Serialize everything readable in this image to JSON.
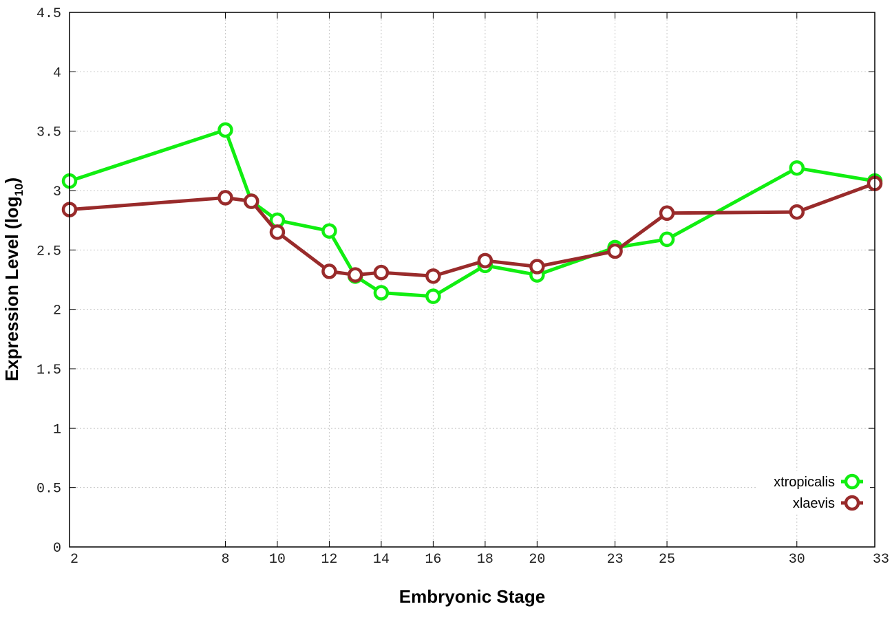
{
  "chart_data": {
    "type": "line",
    "xlabel": "Embryonic Stage",
    "ylabel": "Expression Level (log",
    "ylabel_sub": "10",
    "ylabel_close": ")",
    "x_ticks": [
      2,
      8,
      10,
      12,
      14,
      16,
      18,
      20,
      23,
      25,
      30,
      33
    ],
    "y_ticks": [
      "0",
      "0.5",
      "1",
      "1.5",
      "2",
      "2.5",
      "3",
      "3.5",
      "4",
      "4.5"
    ],
    "xlim": [
      2,
      33
    ],
    "ylim": [
      0,
      4.5
    ],
    "grid": true,
    "legend_position": "bottom-right",
    "series": [
      {
        "name": "xtropicalis",
        "color": "#11ee11",
        "x": [
          2,
          8,
          9,
          10,
          12,
          13,
          14,
          16,
          18,
          20,
          23,
          25,
          30,
          33
        ],
        "y": [
          3.08,
          3.51,
          2.91,
          2.75,
          2.66,
          2.28,
          2.14,
          2.11,
          2.37,
          2.29,
          2.52,
          2.59,
          3.19,
          3.08
        ]
      },
      {
        "name": "xlaevis",
        "color": "#992b2b",
        "x": [
          2,
          8,
          9,
          10,
          12,
          13,
          14,
          16,
          18,
          20,
          23,
          25,
          30,
          33
        ],
        "y": [
          2.84,
          2.94,
          2.91,
          2.65,
          2.32,
          2.29,
          2.31,
          2.28,
          2.41,
          2.36,
          2.49,
          2.81,
          2.82,
          3.06
        ]
      }
    ]
  }
}
